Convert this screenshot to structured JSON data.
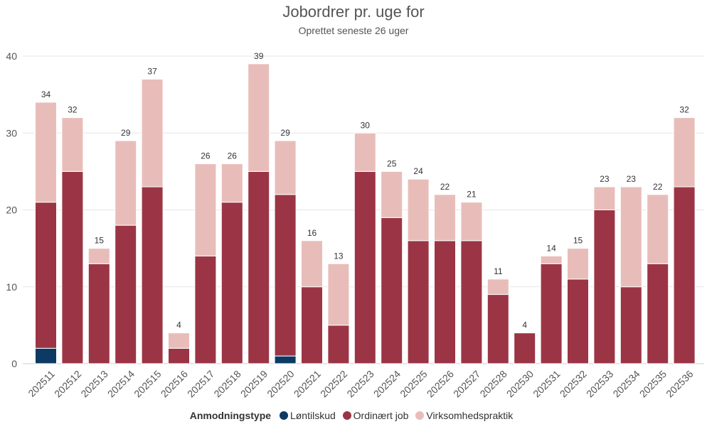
{
  "chart_data": {
    "type": "bar",
    "stacked": true,
    "title": "Jobordrer pr. uge for",
    "subtitle": "Oprettet seneste 26 uger",
    "xlabel": "",
    "ylabel": "",
    "ylim": [
      0,
      40
    ],
    "yticks": [
      0,
      10,
      20,
      30,
      40
    ],
    "grid": true,
    "legend_position": "bottom",
    "legend_title": "Anmodningstype",
    "categories": [
      "202511",
      "202512",
      "202513",
      "202514",
      "202515",
      "202516",
      "202517",
      "202518",
      "202519",
      "202520",
      "202521",
      "202522",
      "202523",
      "202524",
      "202525",
      "202526",
      "202527",
      "202528",
      "202530",
      "202531",
      "202532",
      "202533",
      "202534",
      "202535",
      "202536"
    ],
    "series": [
      {
        "name": "Løntilskud",
        "color": "#0d3a63",
        "values": [
          2,
          0,
          0,
          0,
          0,
          0,
          0,
          0,
          0,
          1,
          0,
          0,
          0,
          0,
          0,
          0,
          0,
          0,
          0,
          0,
          0,
          0,
          0,
          0,
          0
        ]
      },
      {
        "name": "Ordinært job",
        "color": "#9b3545",
        "values": [
          19,
          25,
          13,
          18,
          23,
          2,
          14,
          21,
          25,
          21,
          10,
          5,
          25,
          19,
          16,
          16,
          16,
          9,
          4,
          13,
          11,
          20,
          10,
          13,
          23
        ]
      },
      {
        "name": "Virksomhedspraktik",
        "color": "#e8bdb9",
        "values": [
          13,
          7,
          2,
          11,
          14,
          2,
          12,
          5,
          14,
          7,
          6,
          8,
          5,
          6,
          8,
          6,
          5,
          2,
          0,
          1,
          4,
          3,
          13,
          9,
          9
        ]
      }
    ],
    "totals": [
      34,
      32,
      15,
      29,
      37,
      4,
      26,
      26,
      39,
      29,
      16,
      13,
      30,
      25,
      24,
      22,
      21,
      11,
      4,
      14,
      15,
      23,
      23,
      22,
      32
    ]
  }
}
